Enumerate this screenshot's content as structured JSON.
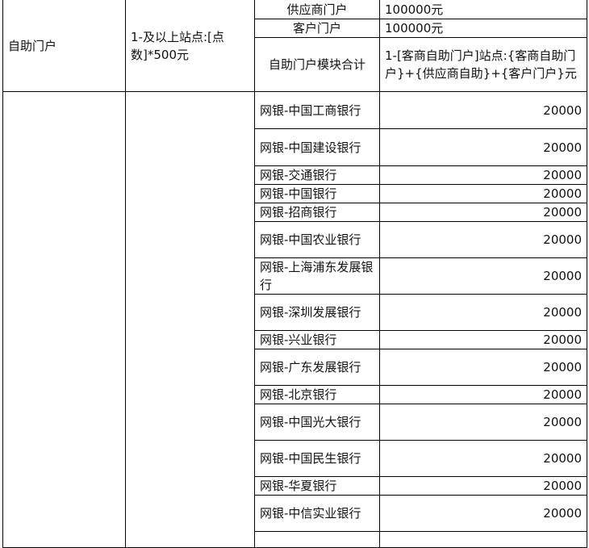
{
  "section": {
    "name": "自助门户",
    "rule": "1-及以上站点:[点数]*500元",
    "sub_items": [
      {
        "label": "供应商门户",
        "value": "100000元"
      },
      {
        "label": "客户门户",
        "value": "100000元"
      },
      {
        "label": "自助门户模块合计",
        "value": "1-[客商自助门户]站点:{客商自助门户}+{供应商自助}+{客户门户}元"
      }
    ]
  },
  "banks": [
    {
      "label": "网银-中国工商银行",
      "value": "20000"
    },
    {
      "label": "网银-中国建设银行",
      "value": "20000"
    },
    {
      "label": "网银-交通银行",
      "value": "20000"
    },
    {
      "label": "网银-中国银行",
      "value": "20000"
    },
    {
      "label": "网银-招商银行",
      "value": "20000"
    },
    {
      "label": "网银-中国农业银行",
      "value": "20000"
    },
    {
      "label": "网银-上海浦东发展银行",
      "value": "20000"
    },
    {
      "label": "网银-深圳发展银行",
      "value": "20000"
    },
    {
      "label": "网银-兴业银行",
      "value": "20000"
    },
    {
      "label": "网银-广东发展银行",
      "value": "20000"
    },
    {
      "label": "网银-北京银行",
      "value": "20000"
    },
    {
      "label": "网银-中国光大银行",
      "value": "20000"
    },
    {
      "label": "网银-中国民生银行",
      "value": "20000"
    },
    {
      "label": "网银-华夏银行",
      "value": "20000"
    },
    {
      "label": "网银-中信实业银行",
      "value": "20000"
    }
  ]
}
